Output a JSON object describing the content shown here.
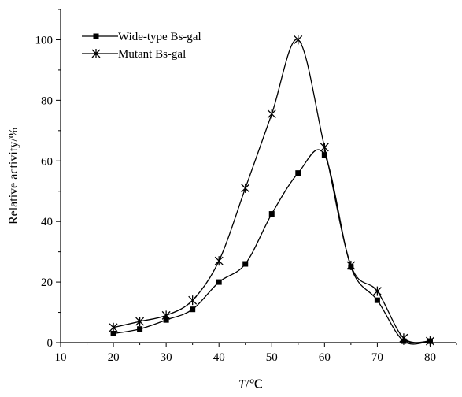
{
  "chart_data": {
    "type": "line",
    "title": "",
    "xlabel_italic": "T",
    "xlabel_unit": "/℃",
    "ylabel": "Relative activity/%",
    "xlim": [
      10,
      85
    ],
    "ylim": [
      0,
      110
    ],
    "xticks": [
      10,
      20,
      30,
      40,
      50,
      60,
      70,
      80
    ],
    "yticks": [
      0,
      20,
      40,
      60,
      80,
      100
    ],
    "grid": false,
    "legend_position": "top-left",
    "x": [
      20,
      25,
      30,
      35,
      40,
      45,
      50,
      55,
      60,
      65,
      70,
      75,
      80
    ],
    "series": [
      {
        "name": "Wide-type Bs-gal",
        "marker": "square",
        "color": "#000000",
        "values": [
          3,
          4.5,
          7.5,
          11,
          20,
          26,
          42.5,
          56,
          62,
          25,
          14,
          0.5,
          0.5
        ]
      },
      {
        "name": "Mutant Bs-gal",
        "marker": "star",
        "color": "#000000",
        "values": [
          5,
          7,
          9,
          14,
          27,
          51,
          75.5,
          100,
          64.5,
          25.5,
          17,
          1.5,
          0.5
        ]
      }
    ]
  }
}
